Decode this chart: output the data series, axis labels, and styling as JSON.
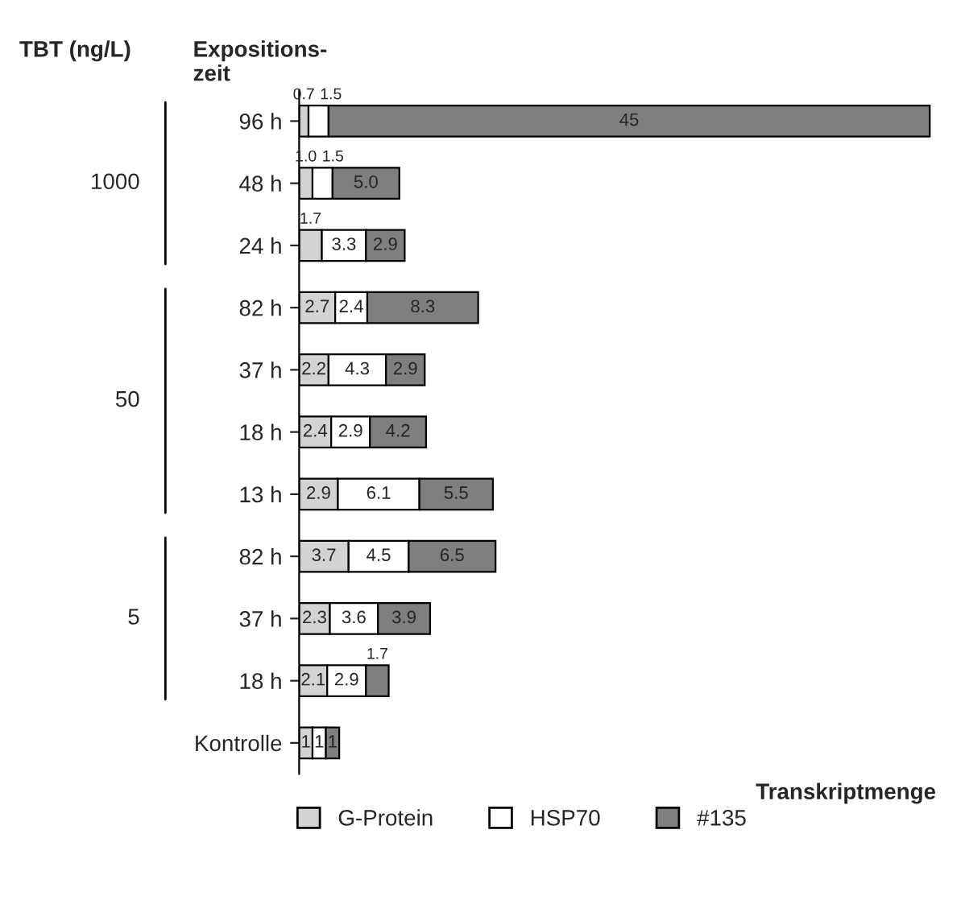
{
  "chart_data": {
    "type": "bar",
    "orientation": "horizontal",
    "stacked": true,
    "tick_labels": "y",
    "xlabel": "Transkriptmenge",
    "legend": "bottom",
    "categories": [
      "96 h",
      "48 h",
      "24 h",
      "82 h",
      "37 h",
      "18 h",
      "13 h",
      "82 h",
      "37 h",
      "18 h",
      "Kontrolle"
    ],
    "annotations": [
      "TBT (ng/L)",
      "Expositions-\nzeit",
      "1000",
      "50",
      "5"
    ],
    "series": [
      {
        "name": "G-Protein",
        "color": "#d3d3d3",
        "values": [
          0.7,
          1.0,
          1.7,
          2.7,
          2.2,
          2.4,
          2.9,
          3.7,
          2.3,
          2.1,
          1
        ],
        "value_labels": [
          "0.7",
          "1.0",
          "1.7",
          "2.7",
          "2.2",
          "2.4",
          "2.9",
          "3.7",
          "2.3",
          "2.1",
          "1"
        ]
      },
      {
        "name": "HSP70",
        "color": "#ffffff",
        "values": [
          1.5,
          1.5,
          3.3,
          2.4,
          4.3,
          2.9,
          6.1,
          4.5,
          3.6,
          2.9,
          1
        ],
        "value_labels": [
          "1.5",
          "1.5",
          "3.3",
          "2.4",
          "4.3",
          "2.9",
          "6.1",
          "4.5",
          "3.6",
          "2.9",
          "1"
        ]
      },
      {
        "name": "#135",
        "color": "#7f7f7f",
        "values": [
          45,
          5.0,
          2.9,
          8.3,
          2.9,
          4.2,
          5.5,
          6.5,
          3.9,
          1.7,
          1
        ],
        "value_labels": [
          "45",
          "5.0",
          "2.9",
          "8.3",
          "2.9",
          "4.2",
          "5.5",
          "6.5",
          "3.9",
          "1.7",
          "1"
        ]
      }
    ]
  }
}
